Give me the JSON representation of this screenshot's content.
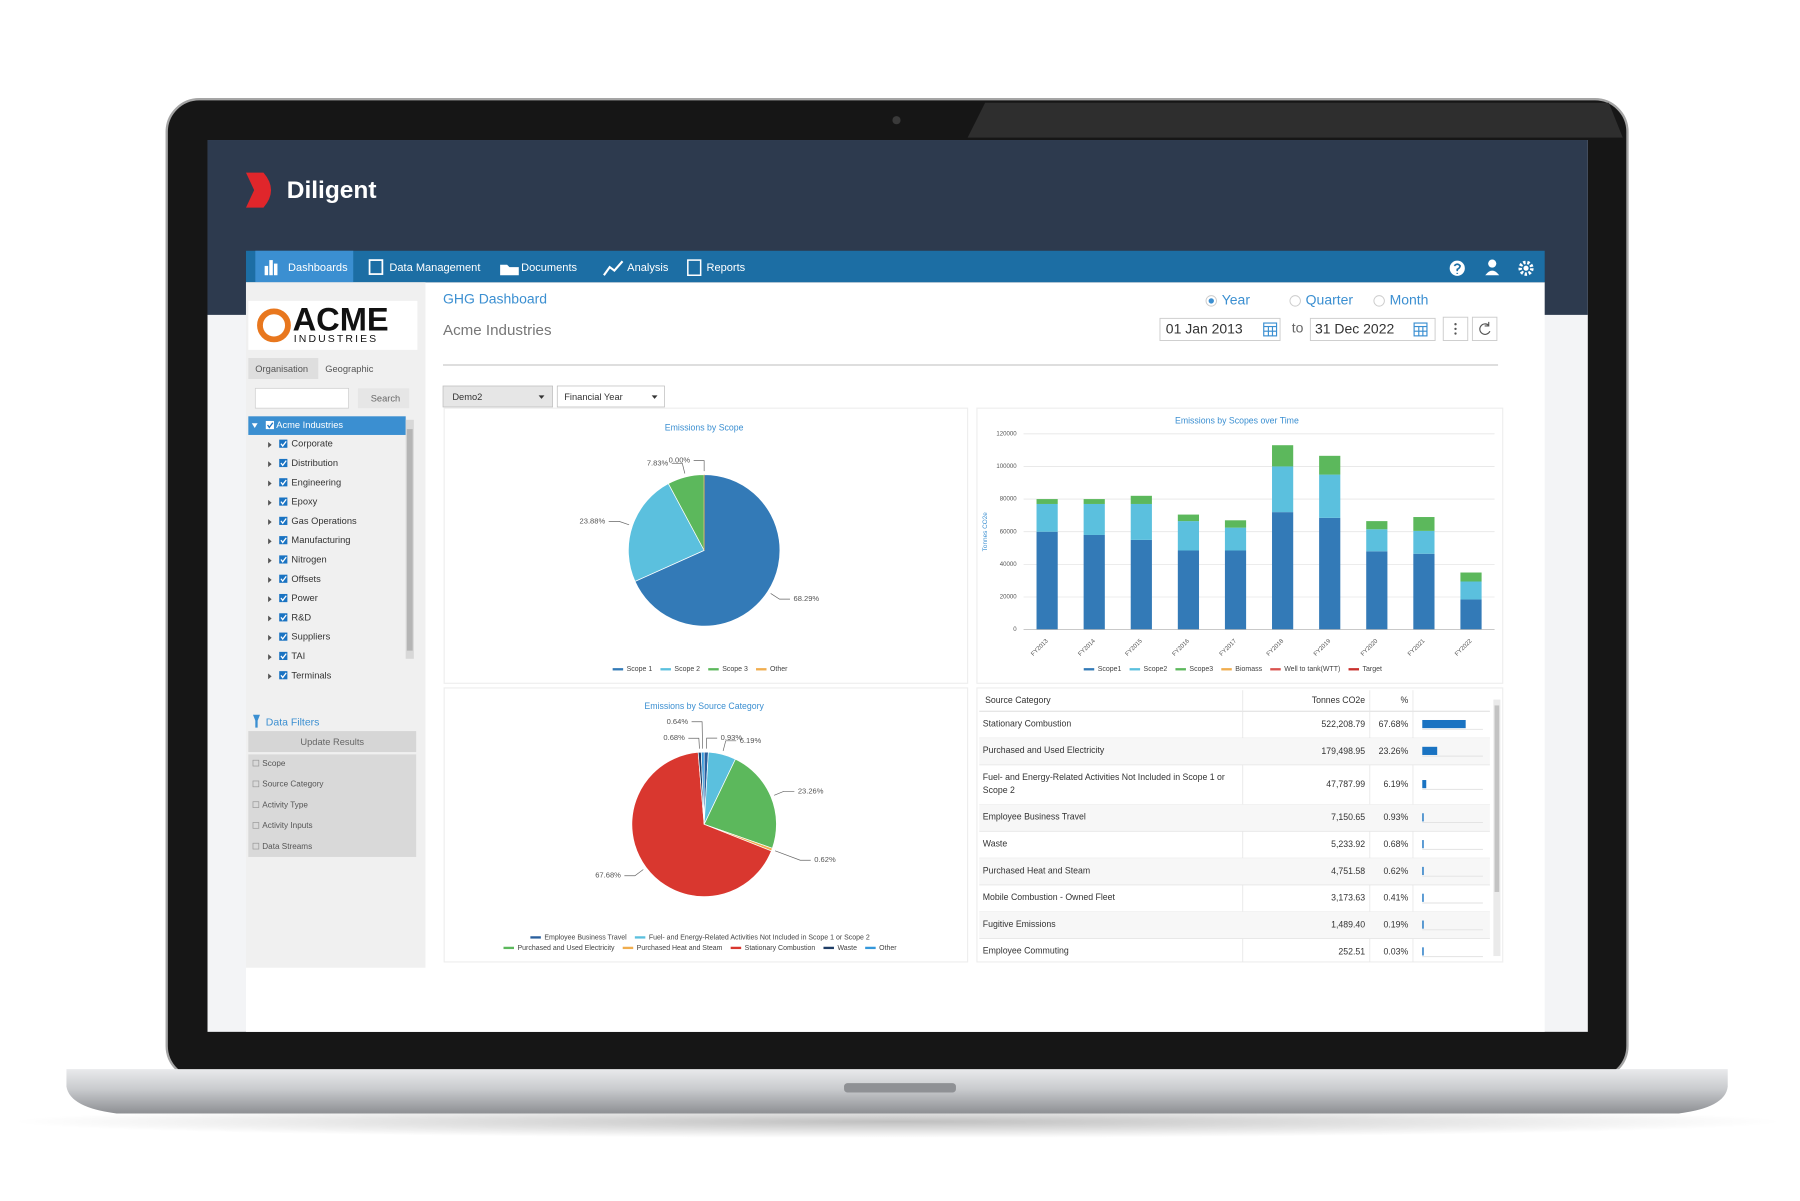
{
  "ui": {
    "brand": "Diligent",
    "nav": [
      "Dashboards",
      "Data Management",
      "Documents",
      "Analysis",
      "Reports"
    ],
    "logo": {
      "name": "ACME",
      "tagline": "INDUSTRIES"
    },
    "sidebar_tabs": [
      "Organisation",
      "Geographic"
    ],
    "search_button": "Search",
    "tree_root": "Acme Industries",
    "tree_children": [
      "Corporate",
      "Distribution",
      "Engineering",
      "Epoxy",
      "Gas Operations",
      "Manufacturing",
      "Nitrogen",
      "Offsets",
      "Power",
      "R&D",
      "Suppliers",
      "TAI",
      "Terminals"
    ],
    "filters_title": "Data Filters",
    "update_button": "Update Results",
    "filters": [
      "Scope",
      "Source Category",
      "Activity Type",
      "Activity Inputs",
      "Data Streams"
    ],
    "page_title": "GHG Dashboard",
    "organisation": "Acme Industries",
    "periods": [
      "Year",
      "Quarter",
      "Month"
    ],
    "date_from": "01 Jan 2013",
    "date_separator": "to",
    "date_to": "31 Dec 2022",
    "dropdowns": [
      "Demo2",
      "Financial Year"
    ]
  },
  "chart_data": [
    {
      "type": "pie",
      "title": "Emissions by Scope",
      "categories": [
        "Scope 1",
        "Scope 2",
        "Scope 3",
        "Other"
      ],
      "values": [
        68.29,
        23.88,
        7.83,
        0
      ],
      "value_labels": [
        "68.29%",
        "23.88%",
        "7.83%",
        "0.00%"
      ],
      "colors": [
        "#337ab7",
        "#5bc0de",
        "#5cb85c",
        "#f0ad4e"
      ]
    },
    {
      "type": "bar",
      "title": "Emissions by Scopes over Time",
      "y_label": "Tonnes CO2e",
      "categories": [
        "FY2013",
        "FY2014",
        "FY2015",
        "FY2016",
        "FY2017",
        "FY2018",
        "FY2019",
        "FY2020",
        "FY2021",
        "FY2022"
      ],
      "stacked": true,
      "grid": true,
      "ylim": [
        0,
        120000
      ],
      "yticks": [
        0,
        20000,
        40000,
        60000,
        80000,
        100000,
        120000
      ],
      "series": [
        {
          "name": "Scope1",
          "color": "#337ab7",
          "values": [
            60000,
            58000,
            55000,
            48500,
            48500,
            72000,
            68500,
            48000,
            46500,
            18500
          ]
        },
        {
          "name": "Scope2",
          "color": "#5bc0de",
          "values": [
            17000,
            19000,
            22000,
            18000,
            14000,
            28000,
            26500,
            13500,
            14000,
            11000
          ]
        },
        {
          "name": "Scope3",
          "color": "#5cb85c",
          "values": [
            3000,
            3000,
            5000,
            4000,
            4500,
            13000,
            11500,
            5000,
            8500,
            5500
          ]
        },
        {
          "name": "Biomass",
          "color": "#f0ad4e",
          "values": [
            null,
            null,
            null,
            null,
            null,
            null,
            null,
            null,
            null,
            null
          ]
        },
        {
          "name": "Well to tank(WTT)",
          "color": "#d9534f",
          "values": [
            null,
            null,
            null,
            null,
            null,
            null,
            null,
            null,
            null,
            null
          ]
        },
        {
          "name": "Target",
          "color": "#c9302c",
          "values": [
            null,
            null,
            null,
            null,
            null,
            null,
            null,
            null,
            null,
            null
          ]
        }
      ]
    },
    {
      "type": "pie",
      "title": "Emissions by Source Category",
      "categories": [
        "Employee Business Travel",
        "Fuel- and Energy-Related Activities Not Included in Scope 1 or Scope 2",
        "Purchased and Used Electricity",
        "Purchased Heat and Steam",
        "Stationary Combustion",
        "Waste",
        "Other"
      ],
      "values": [
        0.93,
        6.19,
        23.26,
        0.62,
        67.68,
        0.68,
        0.64
      ],
      "value_labels": [
        "0.93%",
        "6.19%",
        "23.26%",
        "0.62%",
        "67.68%",
        "0.68%",
        "0.64%"
      ],
      "colors": [
        "#2a5f9e",
        "#5bc0de",
        "#5cb85c",
        "#f0ad4e",
        "#d9372f",
        "#1f3d66",
        "#3498db"
      ]
    }
  ],
  "table": {
    "columns": [
      "Source Category",
      "Tonnes CO2e",
      "%"
    ],
    "rows": [
      {
        "category": "Stationary Combustion",
        "tonnes": "522,208.79",
        "percent": 67.68,
        "percent_label": "67.68%"
      },
      {
        "category": "Purchased and Used Electricity",
        "tonnes": "179,498.95",
        "percent": 23.26,
        "percent_label": "23.26%"
      },
      {
        "category": "Fuel- and Energy-Related Activities Not Included in Scope 1 or Scope 2",
        "tonnes": "47,787.99",
        "percent": 6.19,
        "percent_label": "6.19%"
      },
      {
        "category": "Employee Business Travel",
        "tonnes": "7,150.65",
        "percent": 0.93,
        "percent_label": "0.93%"
      },
      {
        "category": "Waste",
        "tonnes": "5,233.92",
        "percent": 0.68,
        "percent_label": "0.68%"
      },
      {
        "category": "Purchased Heat and Steam",
        "tonnes": "4,751.58",
        "percent": 0.62,
        "percent_label": "0.62%"
      },
      {
        "category": "Mobile Combustion - Owned Fleet",
        "tonnes": "3,173.63",
        "percent": 0.41,
        "percent_label": "0.41%"
      },
      {
        "category": "Fugitive Emissions",
        "tonnes": "1,489.40",
        "percent": 0.19,
        "percent_label": "0.19%"
      },
      {
        "category": "Employee Commuting",
        "tonnes": "252.51",
        "percent": 0.03,
        "percent_label": "0.03%"
      }
    ]
  }
}
